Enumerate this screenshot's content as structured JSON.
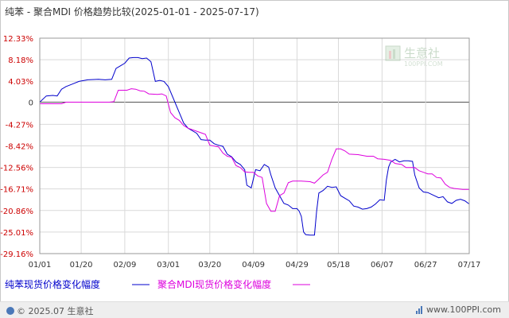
{
  "title": "纯苯 - 聚合MDI 价格趋势比较(2025-01-01 - 2025-07-17)",
  "watermark": {
    "text": "生意社",
    "sub": "100PPI.COM"
  },
  "footer": {
    "left": "© 2025.07 生意社",
    "right": "www.100PPI.com"
  },
  "colors": {
    "accent_red": "#cc0000",
    "series1": "#0000cc",
    "series2": "#dd00dd",
    "grid": "#d9d9d9"
  },
  "chart_data": {
    "type": "line",
    "title": "纯苯 - 聚合MDI 价格趋势比较(2025-01-01 - 2025-07-17)",
    "y_ticks": [
      "12.33%",
      "8.18%",
      "4.03%",
      "0",
      "-4.27%",
      "-8.42%",
      "-12.56%",
      "-16.71%",
      "-20.86%",
      "-25.01%",
      "-29.16%"
    ],
    "y_tick_values": [
      12.33,
      8.18,
      4.03,
      0,
      -4.27,
      -8.42,
      -12.56,
      -16.71,
      -20.86,
      -25.01,
      -29.16
    ],
    "ylim": [
      -29.16,
      12.33
    ],
    "x_ticks": [
      "01/01",
      "01/20",
      "02/09",
      "03/01",
      "03/20",
      "04/09",
      "04/29",
      "05/18",
      "06/07",
      "06/27",
      "07/17"
    ],
    "x_tick_days": [
      0,
      19,
      39,
      59,
      78,
      98,
      118,
      137,
      157,
      177,
      197
    ],
    "xlim_days": [
      0,
      197
    ],
    "grid": true,
    "legend_position": "bottom",
    "series": [
      {
        "name": "纯苯现货价格变化幅度",
        "color": "#0000cc",
        "points": [
          [
            0,
            0
          ],
          [
            3,
            1.2
          ],
          [
            6,
            1.3
          ],
          [
            8,
            1.2
          ],
          [
            10,
            2.5
          ],
          [
            12,
            3.0
          ],
          [
            15,
            3.5
          ],
          [
            18,
            4.0
          ],
          [
            22,
            4.3
          ],
          [
            27,
            4.4
          ],
          [
            30,
            4.3
          ],
          [
            33,
            4.4
          ],
          [
            35,
            6.5
          ],
          [
            37,
            7.0
          ],
          [
            39,
            7.5
          ],
          [
            41,
            8.5
          ],
          [
            43,
            8.6
          ],
          [
            45,
            8.6
          ],
          [
            47,
            8.4
          ],
          [
            49,
            8.5
          ],
          [
            51,
            7.8
          ],
          [
            53,
            4.0
          ],
          [
            55,
            4.2
          ],
          [
            57,
            4.0
          ],
          [
            59,
            3.0
          ],
          [
            62,
            0
          ],
          [
            64,
            -2.0
          ],
          [
            66,
            -4.0
          ],
          [
            68,
            -5.0
          ],
          [
            70,
            -5.5
          ],
          [
            72,
            -6.0
          ],
          [
            74,
            -7.2
          ],
          [
            76,
            -7.3
          ],
          [
            78,
            -7.3
          ],
          [
            80,
            -8.0
          ],
          [
            82,
            -8.3
          ],
          [
            84,
            -8.5
          ],
          [
            86,
            -10.0
          ],
          [
            88,
            -10.5
          ],
          [
            90,
            -11.5
          ],
          [
            92,
            -12.0
          ],
          [
            94,
            -13.0
          ],
          [
            95,
            -16.0
          ],
          [
            97,
            -16.5
          ],
          [
            99,
            -13.0
          ],
          [
            101,
            -13.2
          ],
          [
            103,
            -12.0
          ],
          [
            105,
            -12.5
          ],
          [
            106,
            -14.0
          ],
          [
            108,
            -16.5
          ],
          [
            110,
            -18.0
          ],
          [
            112,
            -19.5
          ],
          [
            114,
            -19.8
          ],
          [
            116,
            -20.5
          ],
          [
            118,
            -20.5
          ],
          [
            119,
            -21.0
          ],
          [
            120,
            -22.0
          ],
          [
            121,
            -25.0
          ],
          [
            122,
            -25.5
          ],
          [
            124,
            -25.6
          ],
          [
            126,
            -25.6
          ],
          [
            127,
            -21.0
          ],
          [
            128,
            -17.5
          ],
          [
            130,
            -17.0
          ],
          [
            132,
            -16.2
          ],
          [
            134,
            -16.4
          ],
          [
            136,
            -16.3
          ],
          [
            138,
            -18.0
          ],
          [
            140,
            -18.5
          ],
          [
            142,
            -19.0
          ],
          [
            144,
            -20.0
          ],
          [
            146,
            -20.2
          ],
          [
            148,
            -20.6
          ],
          [
            150,
            -20.5
          ],
          [
            152,
            -20.2
          ],
          [
            154,
            -19.6
          ],
          [
            156,
            -18.8
          ],
          [
            158,
            -18.9
          ],
          [
            159,
            -15.0
          ],
          [
            160,
            -12.5
          ],
          [
            161,
            -11.5
          ],
          [
            163,
            -11.0
          ],
          [
            165,
            -11.5
          ],
          [
            167,
            -11.3
          ],
          [
            169,
            -11.3
          ],
          [
            171,
            -11.4
          ],
          [
            172,
            -14.0
          ],
          [
            174,
            -16.5
          ],
          [
            176,
            -17.3
          ],
          [
            178,
            -17.4
          ],
          [
            180,
            -17.8
          ],
          [
            183,
            -18.4
          ],
          [
            185,
            -18.2
          ],
          [
            187,
            -19.2
          ],
          [
            189,
            -19.5
          ],
          [
            191,
            -18.9
          ],
          [
            193,
            -18.7
          ],
          [
            195,
            -19.0
          ],
          [
            197,
            -19.6
          ]
        ]
      },
      {
        "name": "聚合MDI现货价格变化幅度",
        "color": "#dd00dd",
        "points": [
          [
            0,
            -0.3
          ],
          [
            10,
            -0.3
          ],
          [
            12,
            0.0
          ],
          [
            32,
            0.0
          ],
          [
            34,
            0.1
          ],
          [
            36,
            2.3
          ],
          [
            40,
            2.3
          ],
          [
            42,
            2.6
          ],
          [
            44,
            2.5
          ],
          [
            46,
            2.2
          ],
          [
            48,
            2.1
          ],
          [
            50,
            1.6
          ],
          [
            54,
            1.5
          ],
          [
            56,
            1.6
          ],
          [
            58,
            1.2
          ],
          [
            60,
            -2.0
          ],
          [
            62,
            -3.0
          ],
          [
            64,
            -3.5
          ],
          [
            66,
            -4.5
          ],
          [
            68,
            -5.0
          ],
          [
            72,
            -5.6
          ],
          [
            76,
            -6.2
          ],
          [
            78,
            -8.3
          ],
          [
            82,
            -8.6
          ],
          [
            84,
            -9.8
          ],
          [
            86,
            -10.4
          ],
          [
            88,
            -10.6
          ],
          [
            90,
            -12.2
          ],
          [
            92,
            -12.6
          ],
          [
            94,
            -13.4
          ],
          [
            96,
            -13.5
          ],
          [
            98,
            -13.5
          ],
          [
            100,
            -14.2
          ],
          [
            102,
            -14.5
          ],
          [
            104,
            -19.5
          ],
          [
            106,
            -21.0
          ],
          [
            108,
            -21.0
          ],
          [
            110,
            -18.0
          ],
          [
            112,
            -17.5
          ],
          [
            114,
            -15.5
          ],
          [
            116,
            -15.2
          ],
          [
            120,
            -15.2
          ],
          [
            124,
            -15.3
          ],
          [
            126,
            -15.6
          ],
          [
            128,
            -14.8
          ],
          [
            130,
            -14.0
          ],
          [
            132,
            -13.5
          ],
          [
            134,
            -11.0
          ],
          [
            136,
            -9.0
          ],
          [
            138,
            -9.0
          ],
          [
            140,
            -9.4
          ],
          [
            142,
            -10.0
          ],
          [
            146,
            -10.1
          ],
          [
            150,
            -10.4
          ],
          [
            153,
            -10.4
          ],
          [
            155,
            -10.9
          ],
          [
            158,
            -11.0
          ],
          [
            161,
            -11.2
          ],
          [
            163,
            -11.8
          ],
          [
            166,
            -12.0
          ],
          [
            168,
            -12.6
          ],
          [
            172,
            -12.6
          ],
          [
            174,
            -13.2
          ],
          [
            176,
            -13.5
          ],
          [
            178,
            -13.8
          ],
          [
            180,
            -13.8
          ],
          [
            182,
            -14.5
          ],
          [
            184,
            -14.6
          ],
          [
            186,
            -15.8
          ],
          [
            188,
            -16.4
          ],
          [
            190,
            -16.6
          ],
          [
            194,
            -16.8
          ],
          [
            197,
            -16.8
          ]
        ]
      }
    ]
  }
}
